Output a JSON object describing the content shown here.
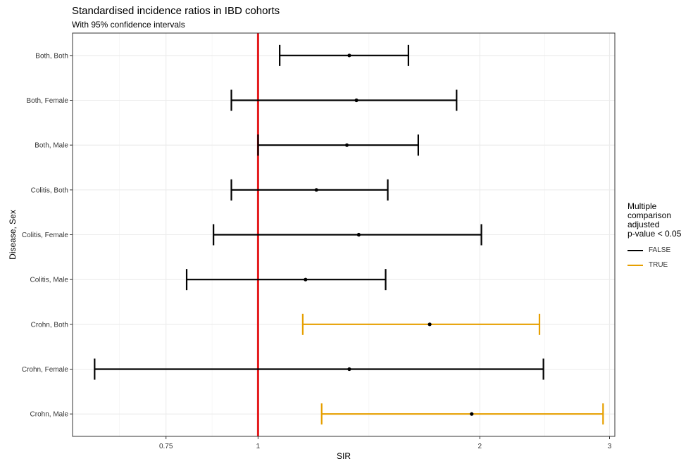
{
  "chart_data": {
    "type": "forest",
    "title": "Standardised incidence ratios in IBD cohorts",
    "subtitle": "With 95% confidence intervals",
    "xlabel": "SIR",
    "ylabel": "Disease, Sex",
    "x_scale": "log",
    "xlim": [
      0.56,
      3.05
    ],
    "x_ticks": [
      0.75,
      1,
      2,
      3
    ],
    "reference_line": 1,
    "reference_color": "#e41a1c",
    "legend_title": "Multiple\ncomparison\nadjusted\np-value < 0.05",
    "legend": [
      {
        "label": "FALSE",
        "color": "#000000"
      },
      {
        "label": "TRUE",
        "color": "#e69f00"
      }
    ],
    "rows": [
      {
        "label": "Both, Both",
        "sir": 1.33,
        "lower": 1.07,
        "upper": 1.6,
        "significant": false
      },
      {
        "label": "Both, Female",
        "sir": 1.36,
        "lower": 0.92,
        "upper": 1.86,
        "significant": false
      },
      {
        "label": "Both, Male",
        "sir": 1.32,
        "lower": 1.0,
        "upper": 1.65,
        "significant": false
      },
      {
        "label": "Colitis, Both",
        "sir": 1.2,
        "lower": 0.92,
        "upper": 1.5,
        "significant": false
      },
      {
        "label": "Colitis, Female",
        "sir": 1.37,
        "lower": 0.87,
        "upper": 2.01,
        "significant": false
      },
      {
        "label": "Colitis, Male",
        "sir": 1.16,
        "lower": 0.8,
        "upper": 1.49,
        "significant": false
      },
      {
        "label": "Crohn, Both",
        "sir": 1.71,
        "lower": 1.15,
        "upper": 2.41,
        "significant": true
      },
      {
        "label": "Crohn, Female",
        "sir": 1.33,
        "lower": 0.6,
        "upper": 2.44,
        "significant": false
      },
      {
        "label": "Crohn, Male",
        "sir": 1.95,
        "lower": 1.22,
        "upper": 2.94,
        "significant": true
      }
    ]
  }
}
